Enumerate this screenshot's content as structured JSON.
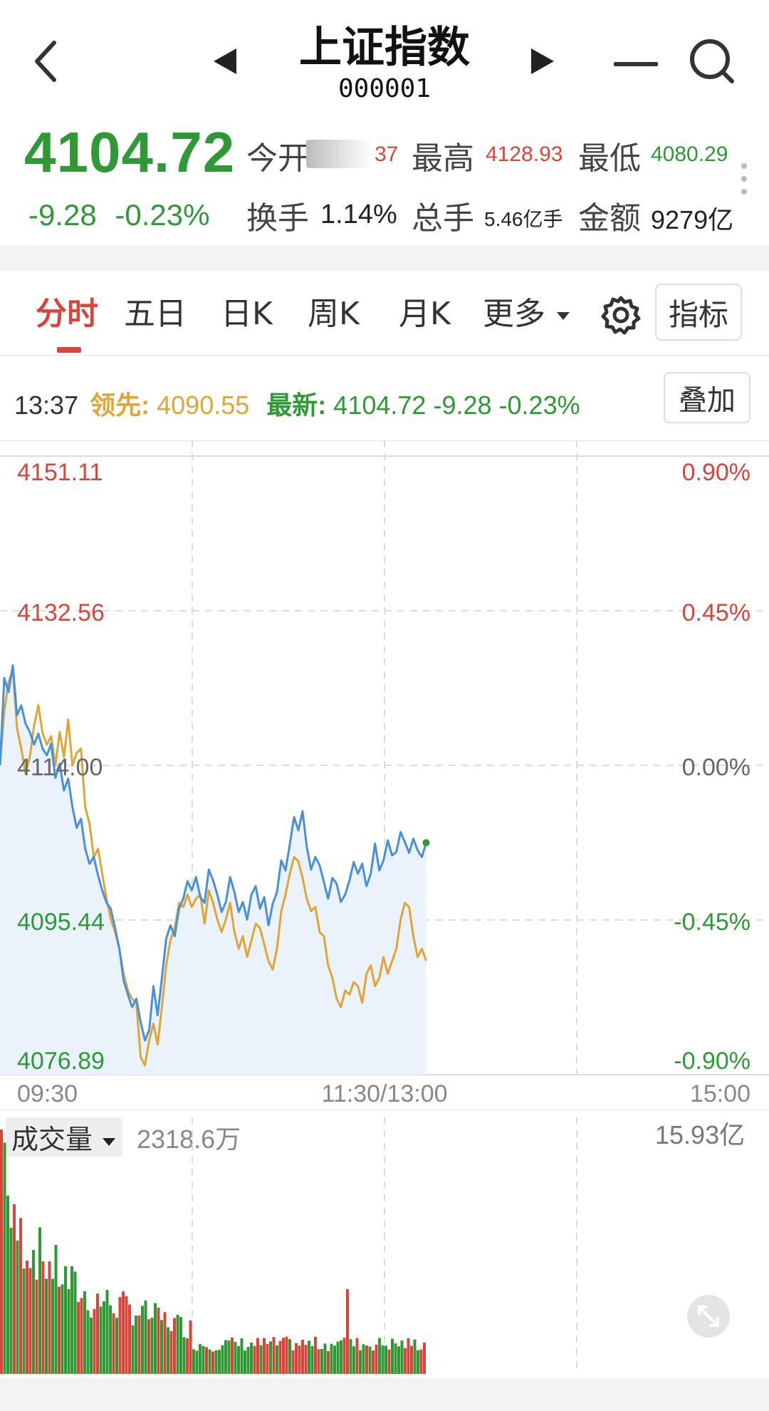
{
  "header": {
    "title": "上证指数",
    "code": "000001"
  },
  "quote": {
    "price": "4104.72",
    "change": "-9.28",
    "change_pct": "-0.23%",
    "open_label": "今开",
    "open_value": "37",
    "high_label": "最高",
    "high_value": "4128.93",
    "low_label": "最低",
    "low_value": "4080.29",
    "turnover_label": "换手",
    "turnover_value": "1.14%",
    "volume_label": "总手",
    "volume_value": "5.46亿手",
    "amount_label": "金额",
    "amount_value": "9279亿"
  },
  "tabs": {
    "minute": "分时",
    "five_day": "五日",
    "day_k": "日K",
    "week_k": "周K",
    "month_k": "月K",
    "more": "更多",
    "indicator": "指标"
  },
  "info": {
    "time": "13:37",
    "lead_label": "领先:",
    "lead_value": "4090.55",
    "latest_label": "最新:",
    "latest_value": "4104.72",
    "latest_change": "-9.28",
    "latest_pct": "-0.23%",
    "overlay_button": "叠加"
  },
  "colors": {
    "up": "#d9443b",
    "down": "#2f9a35",
    "price_line": "#4a90d9",
    "lead_line": "#e0a535",
    "fill": "#eaf3fb"
  },
  "chart_data": {
    "type": "line",
    "x_ticks": [
      "09:30",
      "11:30/13:00",
      "15:00"
    ],
    "y_left_ticks": [
      "4151.11",
      "4132.56",
      "4114.00",
      "4095.44",
      "4076.89"
    ],
    "y_right_ticks": [
      "0.90%",
      "0.45%",
      "0.00%",
      "-0.45%",
      "-0.90%"
    ],
    "ylim": [
      4076.89,
      4151.11
    ],
    "series": [
      {
        "name": "最新",
        "color": "#4a90d9",
        "values": [
          4114.0,
          4124.5,
          4122.8,
          4126.0,
          4120.0,
          4121.2,
          4119.0,
          4118.0,
          4116.5,
          4117.8,
          4116.0,
          4115.2,
          4116.6,
          4112.5,
          4114.2,
          4111.0,
          4112.4,
          4109.0,
          4106.5,
          4107.6,
          4104.0,
          4102.2,
          4103.0,
          4100.8,
          4099.0,
          4097.5,
          4096.8,
          4094.5,
          4092.0,
          4088.2,
          4086.5,
          4085.0,
          4086.0,
          4083.2,
          4081.0,
          4082.2,
          4087.5,
          4084.0,
          4088.5,
          4093.2,
          4094.8,
          4093.5,
          4096.8,
          4098.0,
          4100.1,
          4099.0,
          4100.6,
          4098.2,
          4097.5,
          4101.5,
          4100.2,
          4098.5,
          4096.4,
          4097.6,
          4100.6,
          4098.8,
          4096.4,
          4097.6,
          4095.5,
          4098.5,
          4099.5,
          4096.8,
          4098.2,
          4094.8,
          4097.4,
          4098.8,
          4102.6,
          4101.4,
          4104.5,
          4107.8,
          4106.2,
          4108.5,
          4104.2,
          4101.5,
          4103.0,
          4102.0,
          4100.0,
          4098.0,
          4100.5,
          4099.8,
          4097.6,
          4098.5,
          4100.2,
          4102.4,
          4101.0,
          4102.2,
          4099.5,
          4101.0,
          4104.6,
          4101.4,
          4102.6,
          4105.0,
          4103.2,
          4103.6,
          4106.0,
          4104.8,
          4103.5,
          4105.2,
          4103.8,
          4103.0,
          4104.72
        ]
      },
      {
        "name": "领先",
        "color": "#e0a535",
        "values": [
          4114.0,
          4120.5,
          4124.0,
          4125.5,
          4118.5,
          4116.0,
          4113.0,
          4115.0,
          4118.8,
          4121.2,
          4117.8,
          4116.5,
          4117.5,
          4114.0,
          4118.0,
          4115.0,
          4119.5,
          4114.0,
          4115.5,
          4116.0,
          4109.0,
          4107.0,
          4103.0,
          4104.0,
          4101.0,
          4098.0,
          4095.5,
          4094.0,
          4092.0,
          4089.0,
          4087.0,
          4086.0,
          4085.5,
          4079.0,
          4078.0,
          4081.0,
          4083.0,
          4080.5,
          4085.0,
          4090.0,
          4093.0,
          4094.5,
          4097.5,
          4097.0,
          4098.5,
          4097.0,
          4098.0,
          4098.5,
          4095.0,
          4099.0,
          4097.5,
          4095.5,
          4094.0,
          4095.5,
          4097.5,
          4094.0,
          4092.0,
          4093.5,
          4091.0,
          4093.0,
          4095.0,
          4094.5,
          4092.5,
          4090.5,
          4089.5,
          4092.0,
          4096.5,
          4098.5,
          4101.0,
          4103.0,
          4102.5,
          4100.5,
          4098.0,
          4096.5,
          4097.0,
          4094.0,
          4093.5,
          4090.0,
          4088.5,
          4086.0,
          4085.0,
          4087.0,
          4086.5,
          4088.0,
          4087.5,
          4085.5,
          4089.0,
          4090.0,
          4087.5,
          4088.5,
          4091.0,
          4089.0,
          4090.5,
          4092.0,
          4095.5,
          4097.5,
          4097.0,
          4093.5,
          4091.0,
          4092.0,
          4090.55
        ]
      }
    ],
    "volume": {
      "label": "成交量",
      "current": "2318.6万",
      "max_label": "15.93亿"
    }
  }
}
